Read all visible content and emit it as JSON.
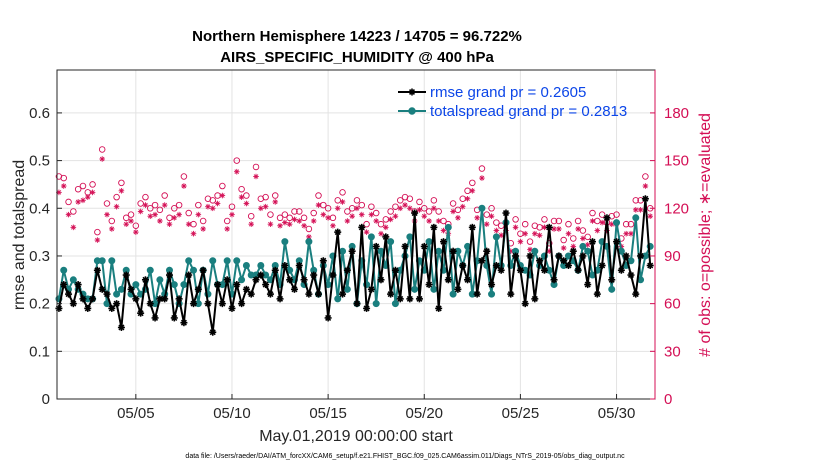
{
  "chart_data": {
    "type": "line",
    "title": "Northern Hemisphere 14223 / 14705 = 96.722%",
    "subtitle": "AIRS_SPECIFIC_HUMIDITY @ 400 hPa",
    "xlabel": "May.01,2019 00:00:00 start",
    "ylabel": "rmse and totalspread",
    "y2label": "# of obs: o=possible; ∗=evaluated",
    "footnote": "data file: /Users/raeder/DAI/ATM_forcXX/CAM6_setup/f.e21.FHIST_BGC.f09_025.CAM6assim.011/Diags_NTrS_2019-05/obs_diag_output.nc",
    "xlim": [
      0.9,
      32.0
    ],
    "ylim": [
      0,
      0.69
    ],
    "y2lim": [
      0,
      207
    ],
    "x_ticks": [
      5,
      10,
      15,
      20,
      25,
      30
    ],
    "x_tick_labels": [
      "05/05",
      "05/10",
      "05/15",
      "05/20",
      "05/25",
      "05/30"
    ],
    "y_ticks": [
      "0",
      "0.1",
      "0.2",
      "0.3",
      "0.4",
      "0.5",
      "0.6"
    ],
    "y2_ticks": [
      "0",
      "30",
      "60",
      "90",
      "120",
      "150",
      "180"
    ],
    "legend_position": "top-right",
    "colors": {
      "rmse": "#000000",
      "spread": "#1a7f7f",
      "obs": "#d40f55",
      "legend_text": "#0c46e8",
      "grid": "#e3e3e3"
    },
    "x": [
      1.0,
      1.25,
      1.5,
      1.75,
      2.0,
      2.25,
      2.5,
      2.75,
      3.0,
      3.25,
      3.5,
      3.75,
      4.0,
      4.25,
      4.5,
      4.75,
      5.0,
      5.25,
      5.5,
      5.75,
      6.0,
      6.25,
      6.5,
      6.75,
      7.0,
      7.25,
      7.5,
      7.75,
      8.0,
      8.25,
      8.5,
      8.75,
      9.0,
      9.25,
      9.5,
      9.75,
      10.0,
      10.25,
      10.5,
      10.75,
      11.0,
      11.25,
      11.5,
      11.75,
      12.0,
      12.25,
      12.5,
      12.75,
      13.0,
      13.25,
      13.5,
      13.75,
      14.0,
      14.25,
      14.5,
      14.75,
      15.0,
      15.25,
      15.5,
      15.75,
      16.0,
      16.25,
      16.5,
      16.75,
      17.0,
      17.25,
      17.5,
      17.75,
      18.0,
      18.25,
      18.5,
      18.75,
      19.0,
      19.25,
      19.5,
      19.75,
      20.0,
      20.25,
      20.5,
      20.75,
      21.0,
      21.25,
      21.5,
      21.75,
      22.0,
      22.25,
      22.5,
      22.75,
      23.0,
      23.25,
      23.5,
      23.75,
      24.0,
      24.25,
      24.5,
      24.75,
      25.0,
      25.25,
      25.5,
      25.75,
      26.0,
      26.25,
      26.5,
      26.75,
      27.0,
      27.25,
      27.5,
      27.75,
      28.0,
      28.25,
      28.5,
      28.75,
      29.0,
      29.25,
      29.5,
      29.75,
      30.0,
      30.25,
      30.5,
      30.75,
      31.0,
      31.25,
      31.5,
      31.75
    ],
    "series": [
      {
        "name": "rmse grand pr = 0.2605",
        "marker": "asterisk",
        "values": [
          0.19,
          0.24,
          0.22,
          0.2,
          0.24,
          0.21,
          0.19,
          0.21,
          0.27,
          0.23,
          0.22,
          0.19,
          0.2,
          0.15,
          0.26,
          0.23,
          0.21,
          0.18,
          0.25,
          0.2,
          0.17,
          0.21,
          0.21,
          0.26,
          0.17,
          0.21,
          0.16,
          0.26,
          0.2,
          0.23,
          0.27,
          0.2,
          0.14,
          0.24,
          0.2,
          0.25,
          0.19,
          0.24,
          0.2,
          0.23,
          0.22,
          0.25,
          0.26,
          0.24,
          0.22,
          0.27,
          0.21,
          0.28,
          0.25,
          0.23,
          0.28,
          0.25,
          0.22,
          0.26,
          0.22,
          0.29,
          0.17,
          0.26,
          0.35,
          0.22,
          0.27,
          0.31,
          0.2,
          0.36,
          0.19,
          0.23,
          0.32,
          0.25,
          0.34,
          0.22,
          0.27,
          0.21,
          0.32,
          0.21,
          0.39,
          0.21,
          0.32,
          0.24,
          0.36,
          0.19,
          0.33,
          0.25,
          0.31,
          0.23,
          0.28,
          0.25,
          0.36,
          0.22,
          0.29,
          0.31,
          0.24,
          0.28,
          0.27,
          0.39,
          0.22,
          0.3,
          0.27,
          0.2,
          0.3,
          0.21,
          0.29,
          0.27,
          0.36,
          0.25,
          0.3,
          0.29,
          0.28,
          0.31,
          0.27,
          0.3,
          0.24,
          0.33,
          0.22,
          0.28,
          0.38,
          0.25,
          0.33,
          0.27,
          0.3,
          0.26,
          0.22,
          0.3,
          0.42,
          0.28
        ]
      },
      {
        "name": "totalspread grand pr = 0.2813",
        "marker": "circle",
        "values": [
          0.21,
          0.27,
          0.23,
          0.25,
          0.23,
          0.22,
          0.21,
          0.21,
          0.29,
          0.29,
          0.2,
          0.29,
          0.22,
          0.23,
          0.27,
          0.22,
          0.24,
          0.22,
          0.23,
          0.27,
          0.2,
          0.25,
          0.22,
          0.27,
          0.24,
          0.2,
          0.24,
          0.29,
          0.27,
          0.2,
          0.27,
          0.22,
          0.29,
          0.24,
          0.24,
          0.29,
          0.22,
          0.29,
          0.25,
          0.28,
          0.26,
          0.26,
          0.28,
          0.26,
          0.25,
          0.28,
          0.24,
          0.33,
          0.27,
          0.25,
          0.29,
          0.24,
          0.33,
          0.27,
          0.22,
          0.28,
          0.24,
          0.3,
          0.21,
          0.31,
          0.23,
          0.32,
          0.2,
          0.29,
          0.24,
          0.34,
          0.2,
          0.31,
          0.28,
          0.33,
          0.2,
          0.27,
          0.3,
          0.34,
          0.23,
          0.29,
          0.27,
          0.33,
          0.23,
          0.31,
          0.27,
          0.36,
          0.22,
          0.31,
          0.28,
          0.32,
          0.22,
          0.29,
          0.4,
          0.28,
          0.22,
          0.34,
          0.28,
          0.37,
          0.28,
          0.31,
          0.28,
          0.27,
          0.26,
          0.31,
          0.28,
          0.3,
          0.27,
          0.24,
          0.3,
          0.28,
          0.3,
          0.29,
          0.27,
          0.32,
          0.31,
          0.26,
          0.27,
          0.33,
          0.32,
          0.23,
          0.37,
          0.31,
          0.28,
          0.29,
          0.38,
          0.25,
          0.3,
          0.32
        ]
      },
      {
        "name": "obs possible",
        "axis": "right",
        "marker": "o",
        "values": [
          140,
          139,
          124,
          118,
          132,
          134,
          130,
          135,
          105,
          157,
          123,
          112,
          127,
          136,
          114,
          116,
          109,
          123,
          127,
          120,
          122,
          119,
          128,
          114,
          120,
          122,
          140,
          117,
          110,
          122,
          112,
          126,
          125,
          128,
          134,
          112,
          121,
          150,
          132,
          128,
          115,
          146,
          126,
          127,
          116,
          128,
          114,
          116,
          114,
          118,
          118,
          114,
          107,
          117,
          128,
          122,
          120,
          114,
          125,
          130,
          118,
          120,
          125,
          122,
          110,
          121,
          117,
          110,
          113,
          118,
          121,
          125,
          127,
          126,
          118,
          124,
          120,
          118,
          125,
          118,
          112,
          110,
          123,
          119,
          126,
          131,
          136,
          119,
          145,
          116,
          120,
          111,
          109,
          111,
          98,
          113,
          104,
          110,
          99,
          109,
          108,
          113,
          98,
          112,
          112,
          100,
          110,
          101,
          112,
          106,
          102,
          117,
          112,
          116,
          111,
          115,
          116,
          101,
          110,
          110,
          125,
          125,
          140,
          120
        ]
      },
      {
        "name": "obs evaluated",
        "axis": "right",
        "marker": "asterisk",
        "values": [
          130,
          134,
          116,
          108,
          124,
          125,
          127,
          130,
          100,
          151,
          116,
          107,
          121,
          131,
          110,
          112,
          105,
          118,
          122,
          115,
          116,
          112,
          122,
          110,
          114,
          116,
          134,
          110,
          104,
          116,
          107,
          121,
          120,
          123,
          128,
          107,
          116,
          143,
          127,
          123,
          110,
          140,
          120,
          121,
          110,
          124,
          109,
          111,
          110,
          113,
          112,
          109,
          102,
          112,
          122,
          116,
          114,
          109,
          120,
          124,
          112,
          115,
          120,
          116,
          105,
          116,
          112,
          104,
          108,
          113,
          115,
          120,
          122,
          120,
          112,
          119,
          115,
          112,
          120,
          112,
          106,
          104,
          118,
          114,
          121,
          126,
          131,
          114,
          139,
          110,
          115,
          106,
          103,
          106,
          93,
          108,
          99,
          104,
          94,
          104,
          103,
          108,
          93,
          107,
          107,
          95,
          104,
          96,
          107,
          101,
          97,
          112,
          106,
          111,
          106,
          110,
          110,
          96,
          104,
          104,
          119,
          119,
          134,
          115
        ]
      }
    ]
  }
}
